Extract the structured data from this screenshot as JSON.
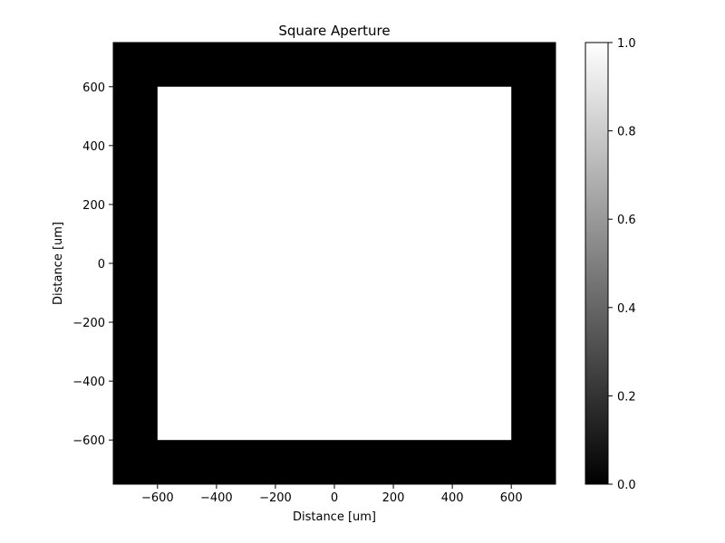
{
  "chart_data": {
    "type": "heatmap",
    "title": "Square Aperture",
    "xlabel": "Distance [um]",
    "ylabel": "Distance [um]",
    "xlim": [
      -750,
      750
    ],
    "ylim": [
      -750,
      750
    ],
    "x_ticks": [
      -600,
      -400,
      -200,
      0,
      200,
      400,
      600
    ],
    "y_ticks": [
      -600,
      -400,
      -200,
      0,
      200,
      400,
      600
    ],
    "colormap": "gray",
    "background_value": 0.0,
    "aperture": {
      "shape": "square",
      "x_range": [
        -600,
        600
      ],
      "y_range": [
        -600,
        600
      ],
      "value": 1.0
    },
    "colorbar": {
      "range": [
        0.0,
        1.0
      ],
      "ticks": [
        0.0,
        0.2,
        0.4,
        0.6,
        0.8,
        1.0
      ],
      "tick_labels": [
        "0.0",
        "0.2",
        "0.4",
        "0.6",
        "0.8",
        "1.0"
      ],
      "colors": {
        "low": "#000000",
        "high": "#ffffff"
      }
    },
    "grid": false
  }
}
